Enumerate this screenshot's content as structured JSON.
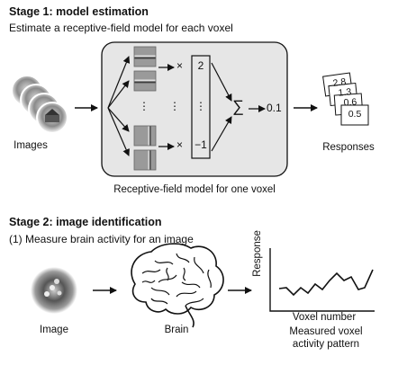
{
  "stage1": {
    "title": "Stage 1: model estimation",
    "subtitle": "Estimate a receptive-field model for each voxel",
    "images_label": "Images",
    "responses_label": "Responses",
    "model_caption": "Receptive-field model for one voxel",
    "weights": [
      "2",
      "⋮",
      "−1"
    ],
    "times_glyph": "×",
    "sum_glyph": "∑",
    "output_value": "0.1",
    "dots": "⋮",
    "response_cards": [
      "2.8",
      "1.3",
      "0.6",
      "0.5"
    ]
  },
  "stage2": {
    "title": "Stage 2: image identification",
    "subtitle": "(1) Measure brain activity for an image",
    "image_label": "Image",
    "brain_label": "Brain",
    "plot_ylabel": "Response",
    "plot_xlabel": "Voxel number",
    "pattern_label_line1": "Measured voxel",
    "pattern_label_line2": "activity pattern"
  },
  "colors": {
    "model_box_fill": "#e6e6e6",
    "stroke": "#111111"
  }
}
